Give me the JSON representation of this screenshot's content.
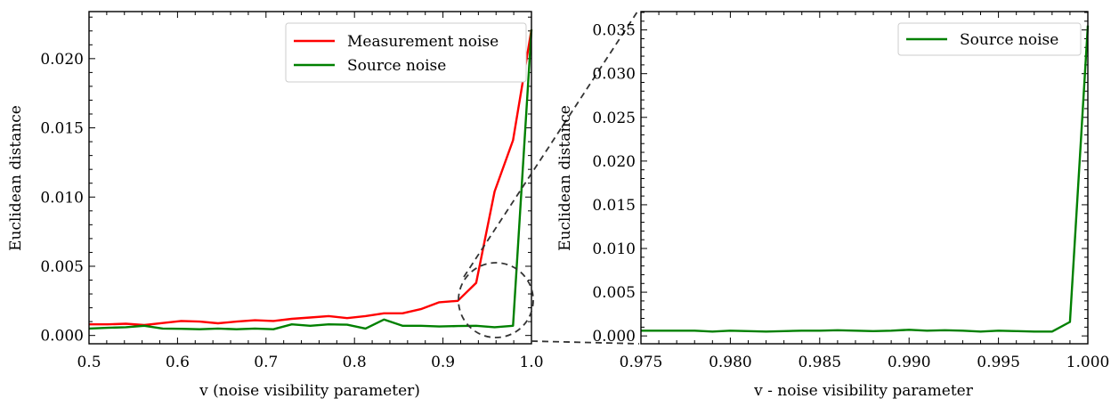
{
  "chart_data": [
    {
      "type": "line",
      "xlabel": "v (noise visibility parameter)",
      "ylabel": "Euclidean distance",
      "xlim": [
        0.5,
        1.0
      ],
      "ylim": [
        -0.0006,
        0.0234
      ],
      "xticks": [
        "0.5",
        "0.6",
        "0.7",
        "0.8",
        "0.9",
        "1.0"
      ],
      "yticks": [
        "0.000",
        "0.005",
        "0.010",
        "0.015",
        "0.020"
      ],
      "legend_position": "top-right",
      "series": [
        {
          "name": "Measurement noise",
          "color": "#ff0000",
          "x": [
            0.5,
            0.5208,
            0.5417,
            0.5625,
            0.5833,
            0.6042,
            0.625,
            0.6458,
            0.6667,
            0.6875,
            0.7083,
            0.7292,
            0.75,
            0.7708,
            0.7917,
            0.8125,
            0.8333,
            0.8542,
            0.875,
            0.8958,
            0.9167,
            0.9375,
            0.9583,
            0.9792,
            1.0
          ],
          "values": [
            0.0008,
            0.0008,
            0.00085,
            0.00075,
            0.0009,
            0.00105,
            0.001,
            0.00088,
            0.001,
            0.0011,
            0.00105,
            0.0012,
            0.0013,
            0.0014,
            0.00125,
            0.0014,
            0.0016,
            0.0016,
            0.0019,
            0.0024,
            0.0025,
            0.0038,
            0.0104,
            0.0141,
            0.0221
          ]
        },
        {
          "name": "Source noise",
          "color": "#008000",
          "x": [
            0.5,
            0.5208,
            0.5417,
            0.5625,
            0.5833,
            0.6042,
            0.625,
            0.6458,
            0.6667,
            0.6875,
            0.7083,
            0.7292,
            0.75,
            0.7708,
            0.7917,
            0.8125,
            0.8333,
            0.8542,
            0.875,
            0.8958,
            0.9167,
            0.9375,
            0.9583,
            0.9792,
            1.0
          ],
          "values": [
            0.0005,
            0.00055,
            0.0006,
            0.0007,
            0.0005,
            0.00048,
            0.00045,
            0.0005,
            0.00045,
            0.0005,
            0.00045,
            0.0008,
            0.0007,
            0.0008,
            0.00078,
            0.0005,
            0.00115,
            0.0007,
            0.0007,
            0.00065,
            0.00068,
            0.0007,
            0.0006,
            0.0007,
            0.0221
          ]
        }
      ]
    },
    {
      "type": "line",
      "xlabel": "v - noise visibility parameter",
      "ylabel": "Euclidean distance",
      "xlim": [
        0.975,
        1.0
      ],
      "ylim": [
        -0.0009,
        0.0371
      ],
      "xticks": [
        "0.975",
        "0.980",
        "0.985",
        "0.990",
        "0.995",
        "1.000"
      ],
      "yticks": [
        "0.000",
        "0.005",
        "0.010",
        "0.015",
        "0.020",
        "0.025",
        "0.030",
        "0.035"
      ],
      "legend_position": "top-right",
      "series": [
        {
          "name": "Source noise",
          "color": "#008000",
          "x": [
            0.975,
            0.976,
            0.977,
            0.978,
            0.979,
            0.98,
            0.981,
            0.982,
            0.983,
            0.984,
            0.985,
            0.986,
            0.987,
            0.988,
            0.989,
            0.99,
            0.991,
            0.992,
            0.993,
            0.994,
            0.995,
            0.996,
            0.997,
            0.998,
            0.999,
            1.0
          ],
          "values": [
            0.0006,
            0.0006,
            0.0006,
            0.0006,
            0.0005,
            0.0006,
            0.00055,
            0.0005,
            0.00055,
            0.0006,
            0.0006,
            0.00065,
            0.0006,
            0.00055,
            0.0006,
            0.0007,
            0.0006,
            0.00065,
            0.0006,
            0.0005,
            0.0006,
            0.00055,
            0.0005,
            0.0005,
            0.0016,
            0.0355
          ]
        }
      ]
    }
  ]
}
